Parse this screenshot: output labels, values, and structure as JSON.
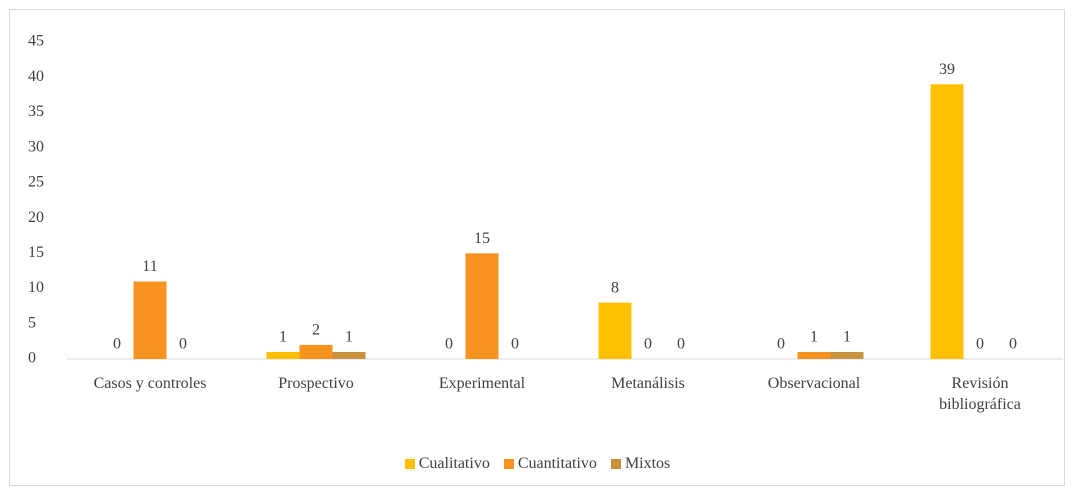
{
  "chart_data": {
    "type": "bar",
    "categories": [
      "Casos y controles",
      "Prospectivo",
      "Experimental",
      "Metanálisis",
      "Observacional",
      "Revisión bibliográfica"
    ],
    "series": [
      {
        "name": "Cualitativo",
        "color": "#ffc000",
        "values": [
          0,
          1,
          0,
          8,
          0,
          39
        ]
      },
      {
        "name": "Cuantitativo",
        "color": "#f7931e",
        "values": [
          11,
          2,
          15,
          0,
          1,
          0
        ]
      },
      {
        "name": "Mixtos",
        "color": "#c8923f",
        "values": [
          0,
          1,
          0,
          0,
          1,
          0
        ]
      }
    ],
    "ylim": [
      0,
      45
    ],
    "yticks": [
      0,
      5,
      10,
      15,
      20,
      25,
      30,
      35,
      40,
      45
    ],
    "grid": false,
    "legend": "bottom"
  }
}
